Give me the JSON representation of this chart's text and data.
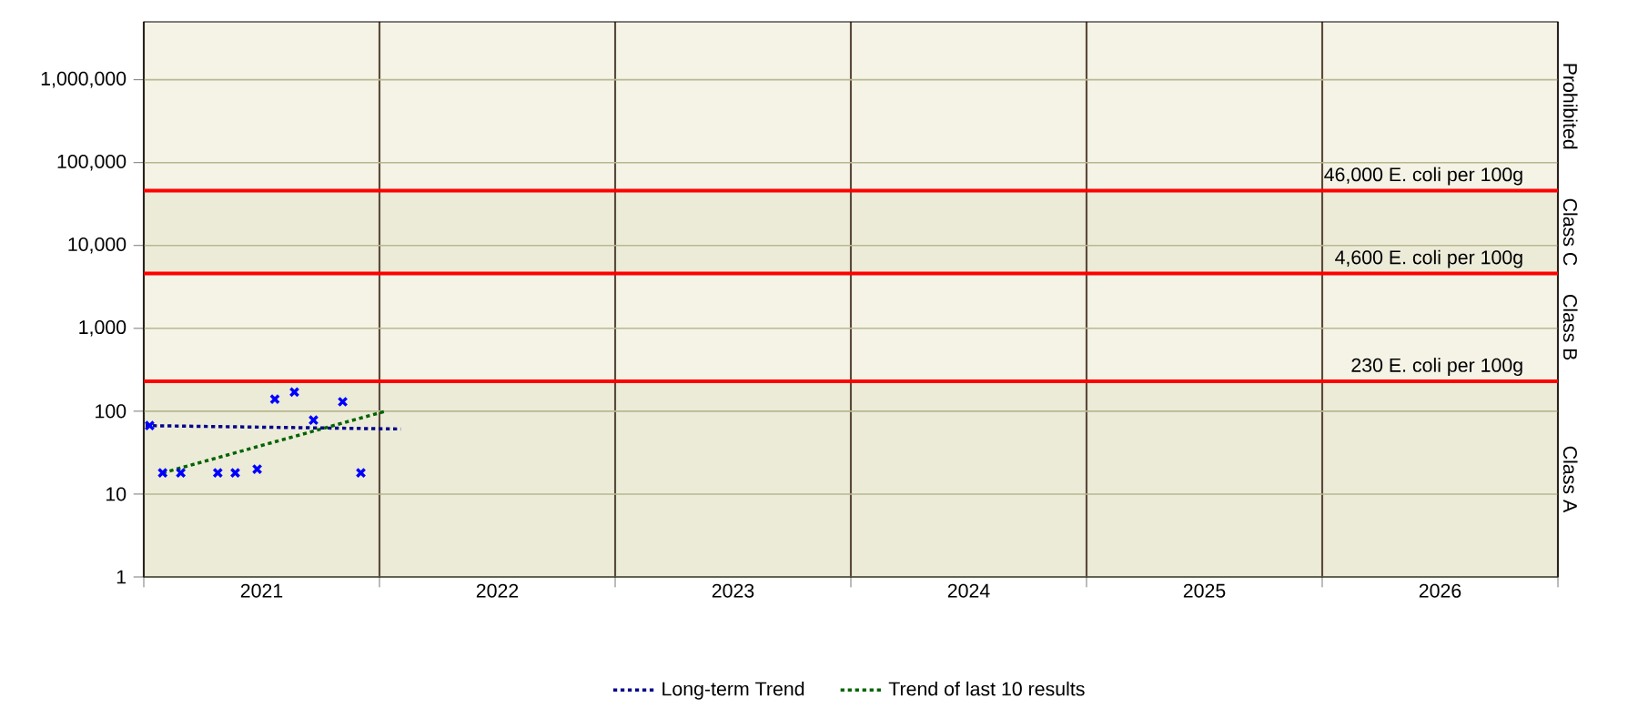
{
  "chart_data": {
    "type": "scatter",
    "xlim": [
      2021,
      2027
    ],
    "xticks": [
      {
        "value": 2021,
        "label": null
      },
      {
        "value": 2022,
        "label": null
      },
      {
        "value": 2023,
        "label": null
      },
      {
        "value": 2024,
        "label": null
      },
      {
        "value": 2025,
        "label": null
      },
      {
        "value": 2026,
        "label": null
      },
      {
        "value": 2027,
        "label": null
      },
      {
        "value": 2021.5,
        "label": "2021"
      },
      {
        "value": 2022.5,
        "label": "2022"
      },
      {
        "value": 2023.5,
        "label": "2023"
      },
      {
        "value": 2024.5,
        "label": "2024"
      },
      {
        "value": 2025.5,
        "label": "2025"
      },
      {
        "value": 2026.5,
        "label": "2026"
      }
    ],
    "ylim": [
      1,
      5000000
    ],
    "yticks": [
      1,
      10,
      100,
      {
        "value": 1000,
        "label": "1,000"
      },
      {
        "value": 10000,
        "label": "10,000"
      },
      {
        "value": 100000,
        "label": "100,000"
      },
      {
        "value": 1000000,
        "label": "1,000,000"
      }
    ],
    "log": "y",
    "grid": true,
    "legend": "bottom",
    "series": [
      {
        "color": "#0000ff",
        "marker": "cross",
        "x": [
          2021.025,
          2021.08,
          2021.157,
          2021.314,
          2021.388,
          2021.481,
          2021.556,
          2021.639,
          2021.72,
          2021.844,
          2021.921
        ],
        "values": [
          67,
          18,
          18,
          18,
          18,
          20,
          140,
          170,
          78,
          130,
          18
        ]
      },
      {
        "type": "line",
        "name": "Long-term Trend",
        "color": "#00008b",
        "line_style": "dotted",
        "x": [
          2021.008,
          2022.09
        ],
        "values": [
          67,
          61
        ]
      },
      {
        "type": "line",
        "name": "Trend of last 10 results",
        "color": "#006400",
        "line_style": "dotted",
        "x": [
          2021.08,
          2022.025
        ],
        "values": [
          18,
          100
        ]
      }
    ],
    "ref_lines": [
      {
        "axis": "y",
        "value": 46000,
        "label": "46,000 E. coli per 100g",
        "color": "#ff0000"
      },
      {
        "axis": "y",
        "value": 4600,
        "label": "4,600 E. coli per 100g",
        "color": "#ff0000"
      },
      {
        "axis": "y",
        "value": 230,
        "label": "230 E. coli per 100g",
        "color": "#ff0000"
      }
    ],
    "bands": [
      {
        "axis": "y",
        "from": 46000,
        "to": 5000000,
        "label": "Prohibited",
        "color": "#f4f3e6"
      },
      {
        "axis": "y",
        "from": 4600,
        "to": 46000,
        "label": "Class C",
        "color": "#ecebd8"
      },
      {
        "axis": "y",
        "from": 230,
        "to": 4600,
        "label": "Class B",
        "color": "#f4f3e6"
      },
      {
        "axis": "y",
        "from": 1,
        "to": 230,
        "label": "Class A",
        "color": "#ecebd8"
      }
    ]
  }
}
